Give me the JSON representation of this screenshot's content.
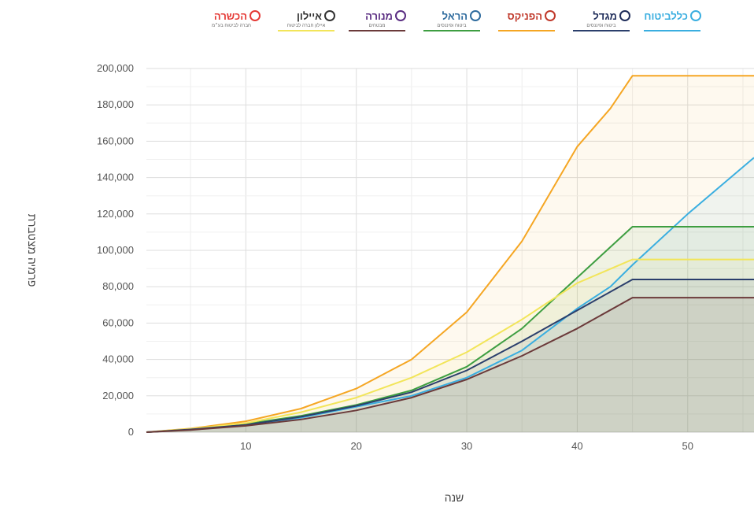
{
  "chart_data": {
    "type": "area",
    "title": "",
    "xlabel": "שנה",
    "ylabel": "פרמיה מצטברת",
    "xlim": [
      1,
      56
    ],
    "ylim": [
      0,
      200000
    ],
    "x_ticks": [
      10,
      20,
      30,
      40,
      50
    ],
    "x_tick_labels": [
      "10",
      "20",
      "30",
      "40",
      "50"
    ],
    "y_ticks": [
      0,
      20000,
      40000,
      60000,
      80000,
      100000,
      120000,
      140000,
      160000,
      180000,
      200000
    ],
    "y_tick_labels": [
      "0",
      "20,000",
      "40,000",
      "60,000",
      "80,000",
      "100,000",
      "120,000",
      "140,000",
      "160,000",
      "180,000",
      "200,000"
    ],
    "grid": true,
    "legend_position": "top",
    "series": [
      {
        "name": "הפניקס",
        "color": "#f5a623",
        "x": [
          1,
          5,
          10,
          15,
          20,
          25,
          30,
          35,
          40,
          43,
          45,
          56
        ],
        "y": [
          0,
          2000,
          6000,
          13000,
          24000,
          40000,
          66000,
          105000,
          157000,
          178000,
          196000,
          196000
        ]
      },
      {
        "name": "כלל ביטוח",
        "color": "#3aaee0",
        "x": [
          1,
          5,
          10,
          15,
          20,
          25,
          30,
          35,
          40,
          43,
          45,
          50,
          56
        ],
        "y": [
          0,
          1500,
          4000,
          8000,
          14000,
          20000,
          30000,
          45000,
          68000,
          80000,
          92000,
          120000,
          151000
        ]
      },
      {
        "name": "הראל",
        "color": "#3e9e41",
        "x": [
          1,
          5,
          10,
          15,
          20,
          25,
          30,
          35,
          40,
          45,
          56
        ],
        "y": [
          0,
          1500,
          4500,
          9000,
          15000,
          23000,
          36000,
          57000,
          85000,
          113000,
          113000
        ]
      },
      {
        "name": "איילון",
        "color": "#f2e55a",
        "x": [
          1,
          5,
          10,
          15,
          20,
          25,
          30,
          35,
          40,
          45,
          56
        ],
        "y": [
          0,
          1800,
          5000,
          11000,
          19000,
          30000,
          44000,
          62000,
          82000,
          95000,
          95000
        ]
      },
      {
        "name": "מגדל",
        "color": "#2b3f6c",
        "x": [
          1,
          5,
          10,
          15,
          20,
          25,
          30,
          35,
          40,
          45,
          56
        ],
        "y": [
          0,
          1500,
          4000,
          8500,
          14500,
          22000,
          34000,
          50000,
          67000,
          84000,
          84000
        ]
      },
      {
        "name": "מנורה מבטחים",
        "color": "#6b3a3a",
        "x": [
          1,
          5,
          10,
          15,
          20,
          25,
          30,
          35,
          40,
          45,
          56
        ],
        "y": [
          0,
          1200,
          3500,
          7000,
          12000,
          19000,
          29000,
          42000,
          57000,
          74000,
          74000
        ]
      }
    ],
    "legend_logos": [
      {
        "text": "הכשרה",
        "sub": "חברה לביטוח בע״מ",
        "color": "#e53935",
        "icon": "hachshara-logo-icon"
      },
      {
        "text": "איילון",
        "sub": "איילון חברה לביטוח",
        "color": "#333333",
        "icon": "ayalon-logo-icon",
        "underline": "#f2e55a"
      },
      {
        "text": "מנורה",
        "sub": "מבטחים",
        "color": "#5a2d82",
        "icon": "menora-logo-icon",
        "underline": "#6b3a3a"
      },
      {
        "text": "הראל",
        "sub": "ביטוח ופיננסים",
        "color": "#2e6b9e",
        "icon": "harel-logo-icon",
        "underline": "#3e9e41"
      },
      {
        "text": "הפניקס",
        "sub": "",
        "color": "#c0392b",
        "icon": "phoenix-logo-icon",
        "underline": "#f5a623"
      },
      {
        "text": "מגדל",
        "sub": "ביטוח ופיננסים",
        "color": "#1f2d5a",
        "icon": "migdal-logo-icon",
        "underline": "#2b3f6c"
      },
      {
        "text": "כללביטוח",
        "sub": "",
        "color": "#3aaee0",
        "icon": "clal-logo-icon",
        "underline": "#3aaee0"
      }
    ]
  }
}
